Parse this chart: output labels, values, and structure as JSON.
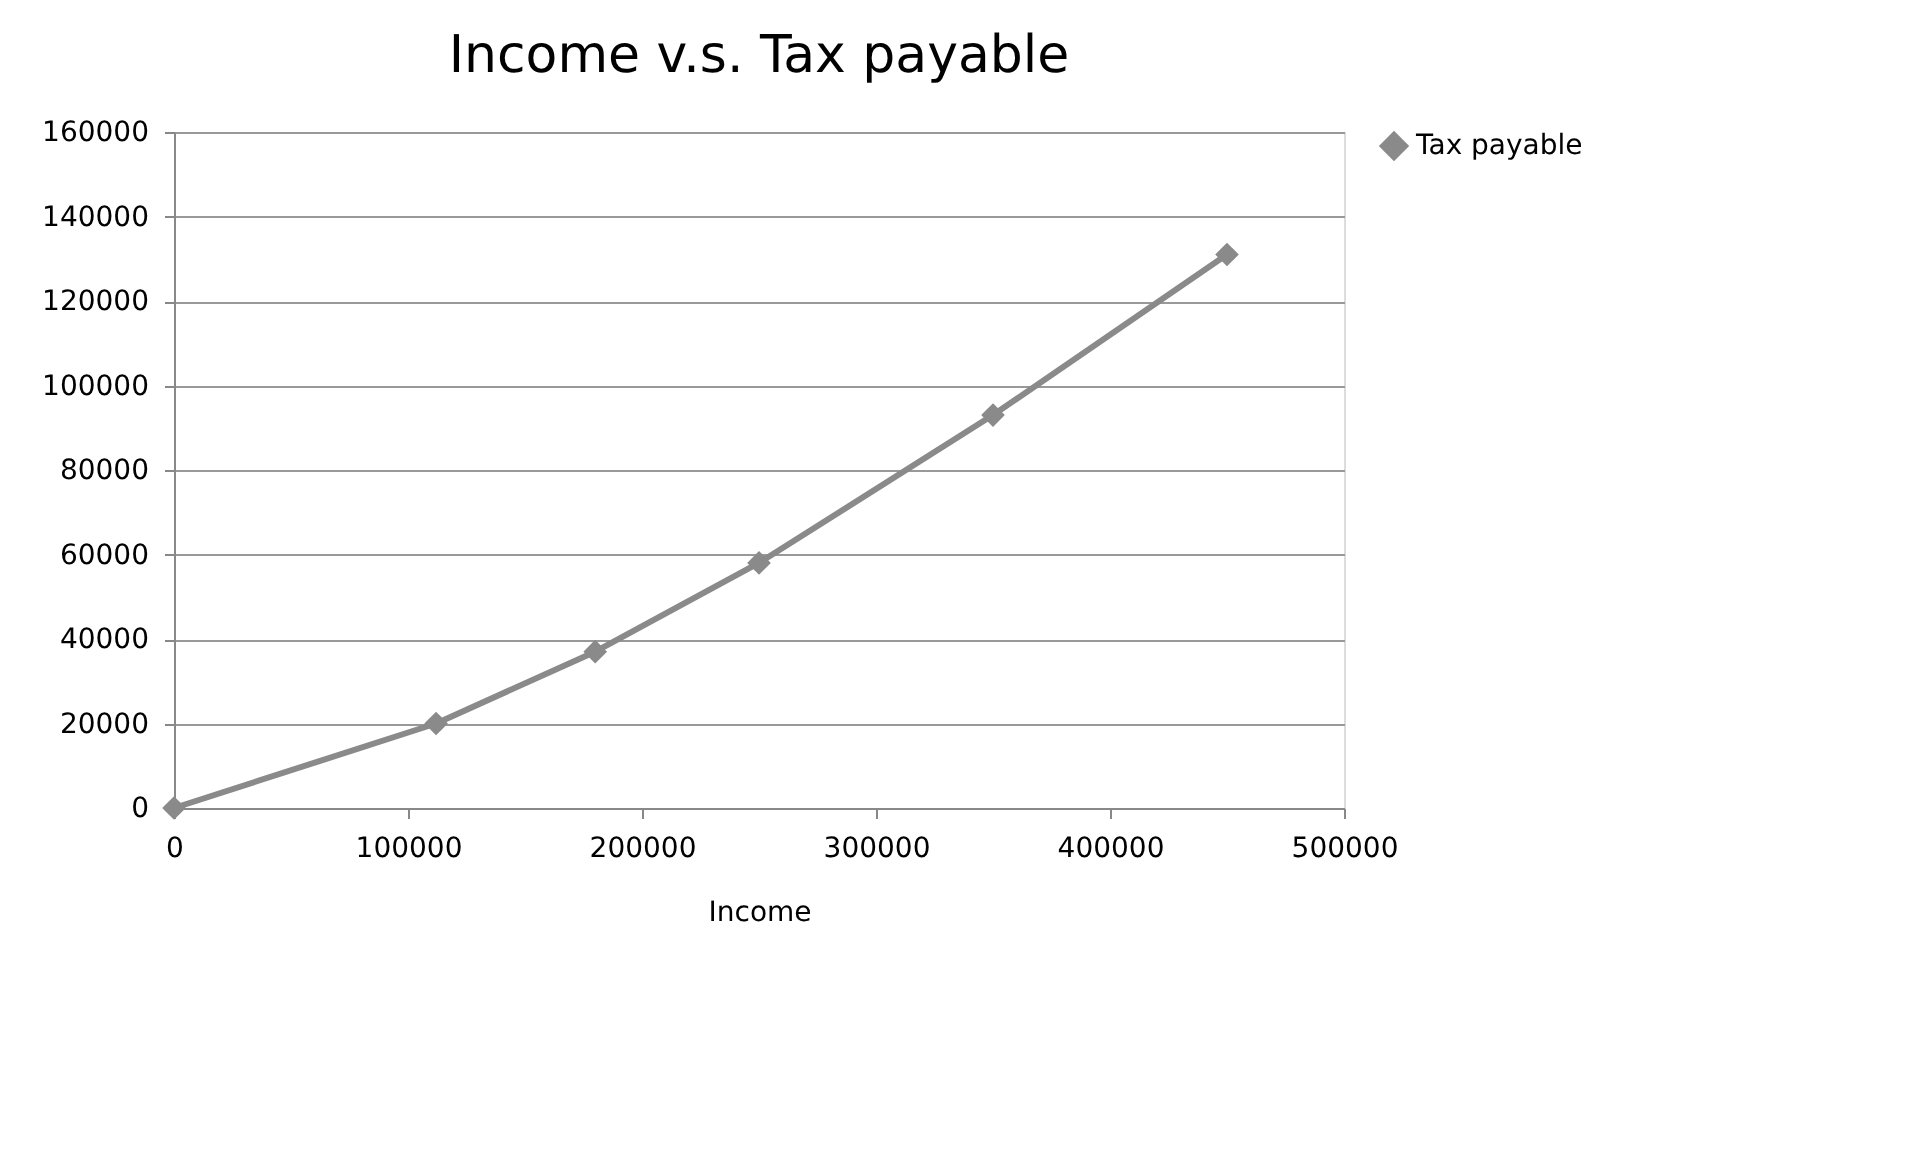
{
  "chart_data": {
    "type": "line",
    "title": "Income v.s. Tax payable",
    "xlabel": "Income",
    "x": [
      0,
      112000,
      180000,
      250000,
      350000,
      450000
    ],
    "series": [
      {
        "name": "Tax payable",
        "color": "#8a8a8a",
        "values": [
          0,
          20000,
          37000,
          58000,
          93000,
          131000
        ]
      }
    ],
    "xlim": [
      0,
      500000
    ],
    "xticks": [
      0,
      100000,
      200000,
      300000,
      400000,
      500000
    ],
    "ylim": [
      0,
      160000
    ],
    "yticks": [
      0,
      20000,
      40000,
      60000,
      80000,
      100000,
      120000,
      140000,
      160000
    ],
    "grid": "y",
    "legend": "right",
    "marker": "diamond",
    "line_style": "solid"
  }
}
